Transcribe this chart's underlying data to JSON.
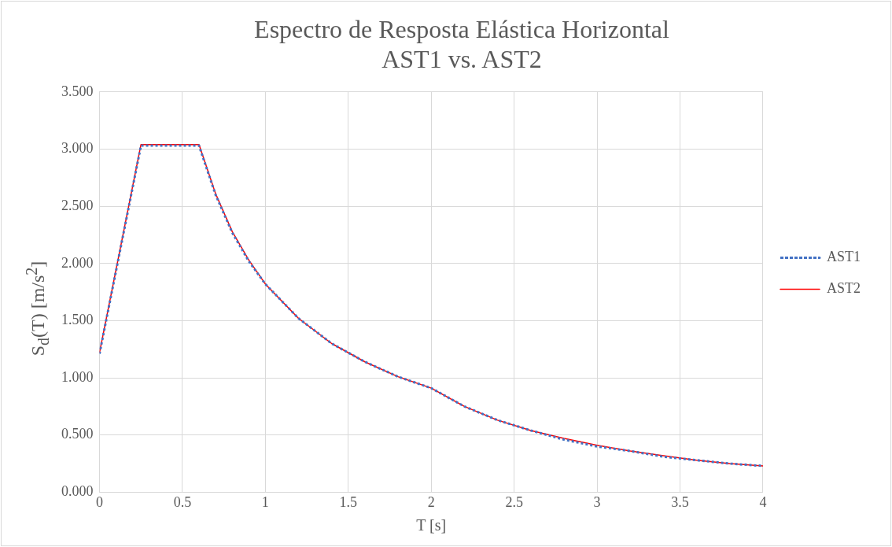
{
  "chart_data": {
    "type": "line",
    "title": "Espectro de Resposta Elástica Horizontal",
    "subtitle": "AST1 vs. AST2",
    "xlabel": "T [s]",
    "ylabel": "S$_{d}$(T) [m/s$^{2}$]",
    "x": [
      0,
      0.25,
      0.6,
      0.7,
      0.8,
      0.9,
      1.0,
      1.2,
      1.4,
      1.6,
      1.8,
      2.0,
      2.2,
      2.4,
      2.6,
      2.8,
      3.0,
      3.2,
      3.4,
      3.6,
      3.8,
      4.0
    ],
    "series": [
      {
        "name": "AST2",
        "color": "#ff0000",
        "line_style": "solid",
        "values": [
          1.22,
          3.04,
          3.04,
          2.61,
          2.28,
          2.03,
          1.82,
          1.52,
          1.3,
          1.14,
          1.01,
          0.91,
          0.75,
          0.63,
          0.54,
          0.47,
          0.41,
          0.36,
          0.32,
          0.28,
          0.25,
          0.23
        ]
      },
      {
        "name": "AST1",
        "color": "#4472c4",
        "line_style": "dotted",
        "values": [
          1.21,
          3.03,
          3.03,
          2.6,
          2.27,
          2.02,
          1.82,
          1.52,
          1.3,
          1.14,
          1.01,
          0.91,
          0.75,
          0.63,
          0.54,
          0.46,
          0.4,
          0.36,
          0.31,
          0.28,
          0.25,
          0.23
        ]
      }
    ],
    "xlim": [
      0,
      4
    ],
    "xticks": [
      0,
      0.5,
      1,
      1.5,
      2,
      2.5,
      3,
      3.5,
      4
    ],
    "ylim": [
      0,
      3.5
    ],
    "yticks": [
      {
        "value": 0,
        "label": "0.000"
      },
      {
        "value": 0.5,
        "label": "0.500"
      },
      {
        "value": 1,
        "label": "1.000"
      },
      {
        "value": 1.5,
        "label": "1.500"
      },
      {
        "value": 2,
        "label": "2.000"
      },
      {
        "value": 2.5,
        "label": "2.500"
      },
      {
        "value": 3,
        "label": "3.000"
      },
      {
        "value": 3.5,
        "label": "3.500"
      }
    ],
    "grid": true,
    "legend": "right",
    "marker": "none"
  }
}
